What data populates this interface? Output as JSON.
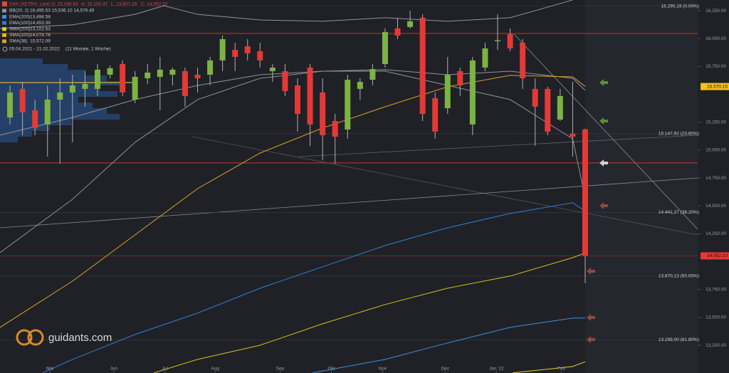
{
  "chart_data": {
    "type": "candlestick",
    "title": "DAX (XETRA, Last)",
    "ohlc_labels": [
      "O: 15,186.63",
      "H: 15,192.47",
      "L: 13,807.28",
      "C: 14,052.10"
    ],
    "period": "05.04.2021 - 21.02.2022",
    "period_note": "(11 Monate, 1 Woche)",
    "brand": "guidants.com",
    "xlim": [
      -0.8,
      55
    ],
    "ylim": [
      13002,
      16346
    ],
    "xticks": [
      {
        "value": 3.2,
        "label": "Mai"
      },
      {
        "value": 8.3,
        "label": "Jun"
      },
      {
        "value": 12.4,
        "label": "Jul"
      },
      {
        "value": 16.4,
        "label": "Aug"
      },
      {
        "value": 21.6,
        "label": "Sep"
      },
      {
        "value": 25.7,
        "label": "Okt"
      },
      {
        "value": 29.8,
        "label": "Nov"
      },
      {
        "value": 34.8,
        "label": "Dez"
      },
      {
        "value": 38.9,
        "label": "Jan '22"
      },
      {
        "value": 44.1,
        "label": "Feb"
      }
    ],
    "yticks": [
      {
        "value": 16250,
        "label": "16,250.00"
      },
      {
        "value": 16000,
        "label": "16,000.00"
      },
      {
        "value": 15750,
        "label": "15,750.00"
      },
      {
        "value": 15250,
        "label": "15,250.00"
      },
      {
        "value": 15000,
        "label": "15,000.00"
      },
      {
        "value": 14750,
        "label": "14,750.00"
      },
      {
        "value": 14500,
        "label": "14,500.00"
      },
      {
        "value": 14250,
        "label": "14,250.00"
      },
      {
        "value": 13750,
        "label": "13,750.00"
      },
      {
        "value": 13500,
        "label": "13,500.00"
      },
      {
        "value": 13250,
        "label": "13,250.00"
      }
    ],
    "up_color": "#7cb342",
    "down_color": "#e53935",
    "candles": {
      "x": [
        0,
        1,
        2,
        3,
        4,
        5,
        6,
        7,
        8,
        9,
        10,
        11,
        12,
        13,
        14,
        15,
        16,
        17,
        18,
        19,
        20,
        21,
        22,
        23,
        24,
        25,
        26,
        27,
        28,
        29,
        30,
        31,
        32,
        33,
        34,
        35,
        36,
        37,
        38,
        39,
        40,
        41,
        42,
        43,
        44,
        45,
        46
      ],
      "ohlc": [
        [
          15293,
          15580,
          15230,
          15517
        ],
        [
          15549,
          15612,
          15134,
          15338
        ],
        [
          15357,
          15453,
          15134,
          15198
        ],
        [
          15230,
          15580,
          14942,
          15453
        ],
        [
          15453,
          15644,
          14879,
          15517
        ],
        [
          15517,
          15676,
          15070,
          15580
        ],
        [
          15549,
          15708,
          15389,
          15593
        ],
        [
          15549,
          15772,
          15485,
          15721
        ],
        [
          15676,
          15759,
          15644,
          15734
        ],
        [
          15772,
          15804,
          15485,
          15517
        ],
        [
          15453,
          15708,
          15421,
          15657
        ],
        [
          15644,
          15772,
          15593,
          15695
        ],
        [
          15657,
          15836,
          15357,
          15721
        ],
        [
          15676,
          15740,
          15580,
          15721
        ],
        [
          15708,
          15740,
          15389,
          15485
        ],
        [
          15676,
          15740,
          15517,
          15644
        ],
        [
          15676,
          15836,
          15580,
          15804
        ],
        [
          15804,
          16027,
          15708,
          15995
        ],
        [
          15899,
          15963,
          15708,
          15836
        ],
        [
          15931,
          15995,
          15804,
          15868
        ],
        [
          15887,
          15963,
          15740,
          15804
        ],
        [
          15708,
          15772,
          15612,
          15740
        ],
        [
          15708,
          15772,
          15485,
          15529
        ],
        [
          15580,
          15644,
          15166,
          15325
        ],
        [
          15740,
          15772,
          15038,
          15230
        ],
        [
          15517,
          15644,
          14911,
          15134
        ],
        [
          15261,
          15325,
          14879,
          15121
        ],
        [
          15185,
          15676,
          15102,
          15631
        ],
        [
          15549,
          15644,
          15453,
          15612
        ],
        [
          15631,
          15772,
          15580,
          15727
        ],
        [
          15772,
          16091,
          15740,
          16059
        ],
        [
          16091,
          16187,
          15995,
          16027
        ],
        [
          16104,
          16250,
          16091,
          16155
        ],
        [
          16187,
          16218,
          15261,
          15325
        ],
        [
          15466,
          15517,
          15102,
          15166
        ],
        [
          15376,
          15836,
          15325,
          15676
        ],
        [
          15708,
          15740,
          15485,
          15580
        ],
        [
          15230,
          15836,
          15134,
          15804
        ],
        [
          15740,
          15963,
          15708,
          15912
        ],
        [
          15976,
          16218,
          15899,
          15985
        ],
        [
          16040,
          16091,
          15887,
          15912
        ],
        [
          15963,
          15995,
          15549,
          15644
        ],
        [
          15549,
          15644,
          15038,
          15389
        ],
        [
          15549,
          15568,
          15134,
          15166
        ],
        [
          15274,
          15549,
          15261,
          15485
        ],
        [
          15147,
          15612,
          14942,
          15121
        ],
        [
          15186.63,
          15192.47,
          13807.28,
          14052.1
        ]
      ]
    },
    "series": [
      {
        "name": "BB(20, 2)",
        "legend_values": "16,495.53  15,536.10  14,576.45",
        "color": "#8f9399",
        "lines": [
          {
            "x": [
              -0.8,
              5,
              10,
              12.3,
              15,
              20,
              25,
              30,
              35,
              40,
              45,
              46
            ],
            "values": [
              16091,
              16123,
              16218,
              16295,
              16218,
              16167,
              16155,
              16187,
              16155,
              16187,
              16346,
              16495.53
            ]
          },
          {
            "x": [
              -0.8,
              5,
              10,
              15,
              20,
              25,
              30,
              35,
              40,
              45,
              46
            ],
            "values": [
              15134,
              15293,
              15453,
              15580,
              15676,
              15708,
              15721,
              15676,
              15708,
              15644,
              15536.1
            ]
          },
          {
            "x": [
              -0.8,
              5,
              10,
              15,
              20,
              25,
              30,
              35,
              40,
              45,
              46
            ],
            "values": [
              14081,
              14560,
              15070,
              15453,
              15644,
              15708,
              15708,
              15580,
              15453,
              15102,
              14576.45
            ]
          }
        ]
      },
      {
        "name": "EMA(200)",
        "legend_values": "13,494.58",
        "color": "#3f8fe0",
        "lines": [
          {
            "x": [
              24.2,
              30,
              35,
              40,
              45,
              46
            ],
            "values": [
              13003,
              13124,
              13271,
              13411,
              13494,
              13494.58
            ]
          }
        ]
      },
      {
        "name": "EMA(100)",
        "legend_values": "14,453.39",
        "color": "#2f7fd6",
        "lines": [
          {
            "x": [
              2.6,
              5,
              10,
              15,
              20,
              25,
              30,
              35,
              40,
              45,
              46
            ],
            "values": [
              13003,
              13124,
              13347,
              13539,
              13762,
              13954,
              14145,
              14304,
              14432,
              14528,
              14453.39
            ]
          }
        ]
      },
      {
        "name": "SMA(200)",
        "legend_values": "13,102.53",
        "color": "#e6d21e",
        "lines": [
          {
            "x": [
              40.2,
              45,
              46
            ],
            "values": [
              13003,
              13060,
              13102.53
            ]
          }
        ]
      },
      {
        "name": "SMA(100)",
        "legend_values": "14,078.76",
        "color": "#d4c21c",
        "lines": [
          {
            "x": [
              11.5,
              15,
              20,
              25,
              30,
              35,
              40,
              45,
              46
            ],
            "values": [
              13003,
              13124,
              13251,
              13443,
              13616,
              13762,
              13871,
              14036,
              14078.76
            ]
          }
        ]
      },
      {
        "name": "SMA(38)",
        "legend_values": "15,572.09",
        "color": "#d9a323",
        "lines": [
          {
            "x": [
              -0.8,
              5,
              10,
              15,
              20,
              25,
              30,
              35,
              40,
              45,
              46
            ],
            "values": [
              13411,
              13826,
              14241,
              14655,
              14974,
              15198,
              15389,
              15568,
              15670,
              15657,
              15572.09
            ]
          }
        ]
      }
    ],
    "hlines": [
      {
        "value": 16046,
        "color": "#d32f2f"
      },
      {
        "value": 14885,
        "color": "#d32f2f"
      },
      {
        "value": 14052.1,
        "color": "#7a2323"
      }
    ],
    "fib_levels": [
      {
        "value": 16290.19,
        "label": "16.290,19 (0.00%)"
      },
      {
        "value": 15147.92,
        "label": "15.147,92 (23.60%)"
      },
      {
        "value": 14441.27,
        "label": "14.441,27 (38.20%)"
      },
      {
        "value": 13870.13,
        "label": "13.870,13 (50.00%)"
      },
      {
        "value": 13299.0,
        "label": "13.299,00 (61.80%)"
      }
    ],
    "price_badges": [
      {
        "value": 15570.15,
        "label": "15,570.15",
        "color": "#f2c21b"
      },
      {
        "value": 14052.1,
        "label": "14,052.10",
        "color": "#e53935"
      }
    ]
  }
}
